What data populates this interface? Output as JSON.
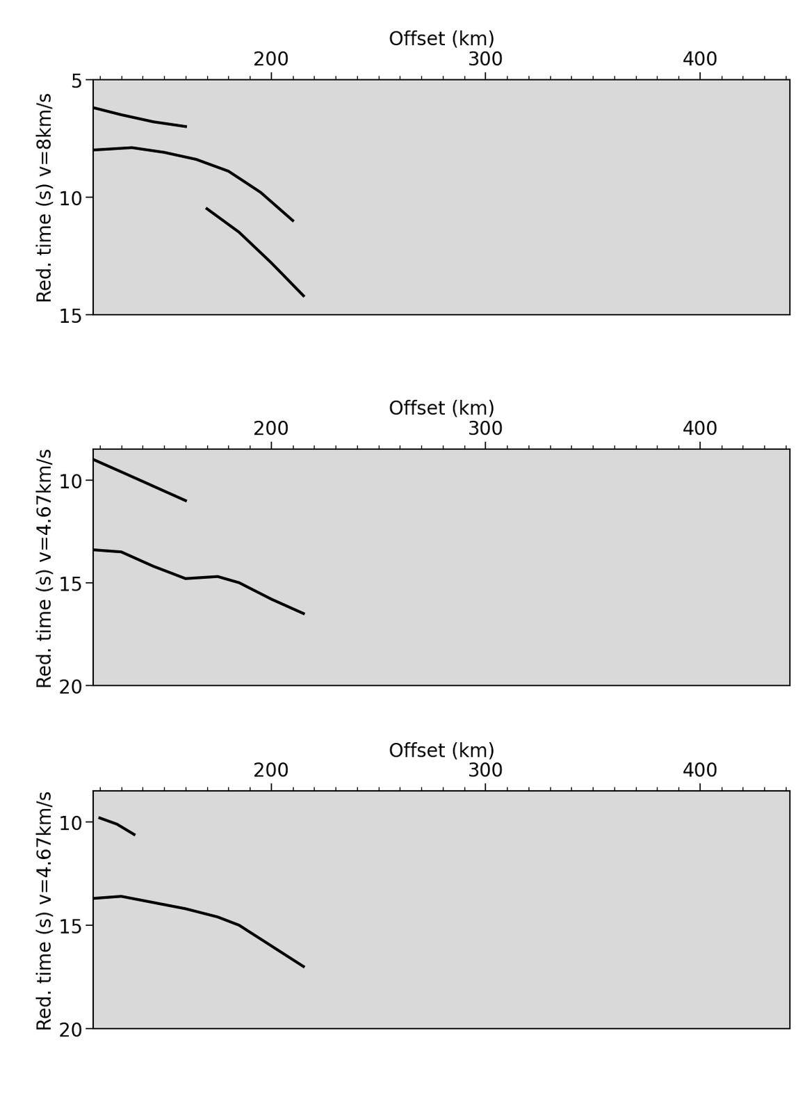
{
  "chart_data": [
    {
      "type": "line",
      "xlabel": "Offset (km)",
      "ylabel": "Red. time (s) v=8km/s",
      "xlim": [
        117,
        442
      ],
      "xticks": [
        200,
        300,
        400
      ],
      "minor_xticks": [
        120,
        130,
        140,
        150,
        160,
        170,
        180,
        190,
        210,
        220,
        230,
        240,
        250,
        260,
        270,
        280,
        290,
        310,
        320,
        330,
        340,
        350,
        360,
        370,
        380,
        390,
        410,
        420,
        430,
        440
      ],
      "ylim": [
        15,
        5
      ],
      "yticks": [
        5,
        10,
        15
      ],
      "series": [
        {
          "color": "#000000",
          "x": [
            117,
            130,
            145,
            160
          ],
          "values": [
            6.2,
            6.5,
            6.8,
            7.0
          ]
        },
        {
          "color": "#000000",
          "x": [
            117,
            135,
            150,
            165,
            180,
            195,
            210
          ],
          "values": [
            8.0,
            7.9,
            8.1,
            8.4,
            8.9,
            9.8,
            11.0
          ]
        },
        {
          "color": "#000000",
          "x": [
            170,
            185,
            200,
            215
          ],
          "values": [
            10.5,
            11.5,
            12.8,
            14.2
          ]
        }
      ]
    },
    {
      "type": "line",
      "xlabel": "Offset (km)",
      "ylabel": "Red. time (s) v=4.67km/s",
      "xlim": [
        117,
        442
      ],
      "xticks": [
        200,
        300,
        400
      ],
      "minor_xticks": [
        120,
        130,
        140,
        150,
        160,
        170,
        180,
        190,
        210,
        220,
        230,
        240,
        250,
        260,
        270,
        280,
        290,
        310,
        320,
        330,
        340,
        350,
        360,
        370,
        380,
        390,
        410,
        420,
        430,
        440
      ],
      "ylim": [
        20,
        8.5
      ],
      "yticks": [
        10,
        15,
        20
      ],
      "series": [
        {
          "color": "#000000",
          "x": [
            117,
            130,
            145,
            160
          ],
          "values": [
            9.0,
            9.6,
            10.3,
            11.0
          ]
        },
        {
          "color": "#000000",
          "x": [
            117,
            130,
            145,
            160,
            175,
            185,
            200,
            215
          ],
          "values": [
            13.4,
            13.5,
            14.2,
            14.8,
            14.7,
            15.0,
            15.8,
            16.5
          ]
        }
      ]
    },
    {
      "type": "line",
      "xlabel": "Offset (km)",
      "ylabel": "Red. time (s) v=4.67km/s",
      "xlim": [
        117,
        442
      ],
      "xticks": [
        200,
        300,
        400
      ],
      "minor_xticks": [
        120,
        130,
        140,
        150,
        160,
        170,
        180,
        190,
        210,
        220,
        230,
        240,
        250,
        260,
        270,
        280,
        290,
        310,
        320,
        330,
        340,
        350,
        360,
        370,
        380,
        390,
        410,
        420,
        430,
        440
      ],
      "ylim": [
        20,
        8.5
      ],
      "yticks": [
        10,
        15,
        20
      ],
      "series": [
        {
          "color": "#000000",
          "x": [
            120,
            128,
            136
          ],
          "values": [
            9.8,
            10.1,
            10.6
          ]
        },
        {
          "color": "#000000",
          "x": [
            117,
            130,
            145,
            160,
            175,
            185,
            200,
            215
          ],
          "values": [
            13.7,
            13.6,
            13.9,
            14.2,
            14.6,
            15.0,
            16.0,
            17.0
          ]
        }
      ]
    }
  ]
}
